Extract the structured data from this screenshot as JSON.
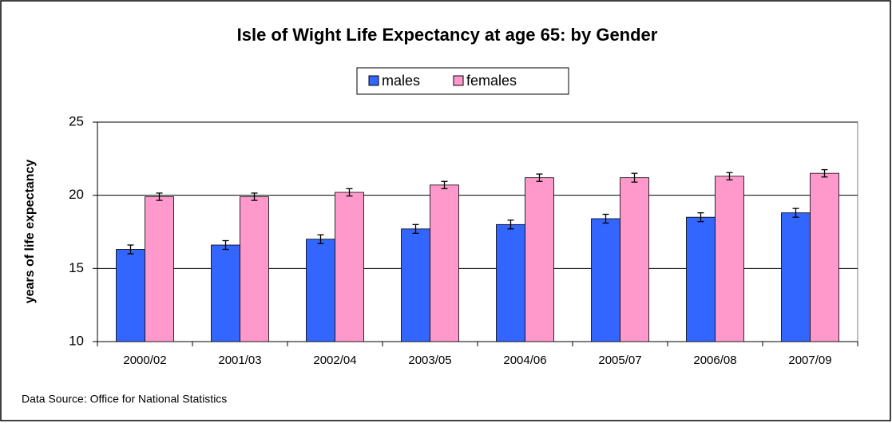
{
  "chart_data": {
    "type": "bar",
    "title": "Isle of Wight Life Expectancy at age 65: by Gender",
    "y_label": "years of life expectancy",
    "source": "Data Source: Office for National Statistics",
    "categories": [
      "2000/02",
      "2001/03",
      "2002/04",
      "2003/05",
      "2004/06",
      "2005/07",
      "2006/08",
      "2007/09"
    ],
    "series": [
      {
        "name": "males",
        "color": "#3366ff",
        "values": [
          16.3,
          16.6,
          17.0,
          17.7,
          18.0,
          18.4,
          18.5,
          18.8
        ],
        "errors": [
          0.3,
          0.3,
          0.3,
          0.3,
          0.3,
          0.3,
          0.3,
          0.3
        ]
      },
      {
        "name": "females",
        "color": "#ff99cc",
        "values": [
          19.9,
          19.9,
          20.2,
          20.7,
          21.2,
          21.2,
          21.3,
          21.5
        ],
        "errors": [
          0.25,
          0.25,
          0.25,
          0.25,
          0.25,
          0.3,
          0.25,
          0.25
        ]
      }
    ],
    "ylim": [
      10,
      25
    ],
    "yticks": [
      10,
      15,
      20,
      25
    ],
    "grid": true,
    "legend": "top"
  }
}
